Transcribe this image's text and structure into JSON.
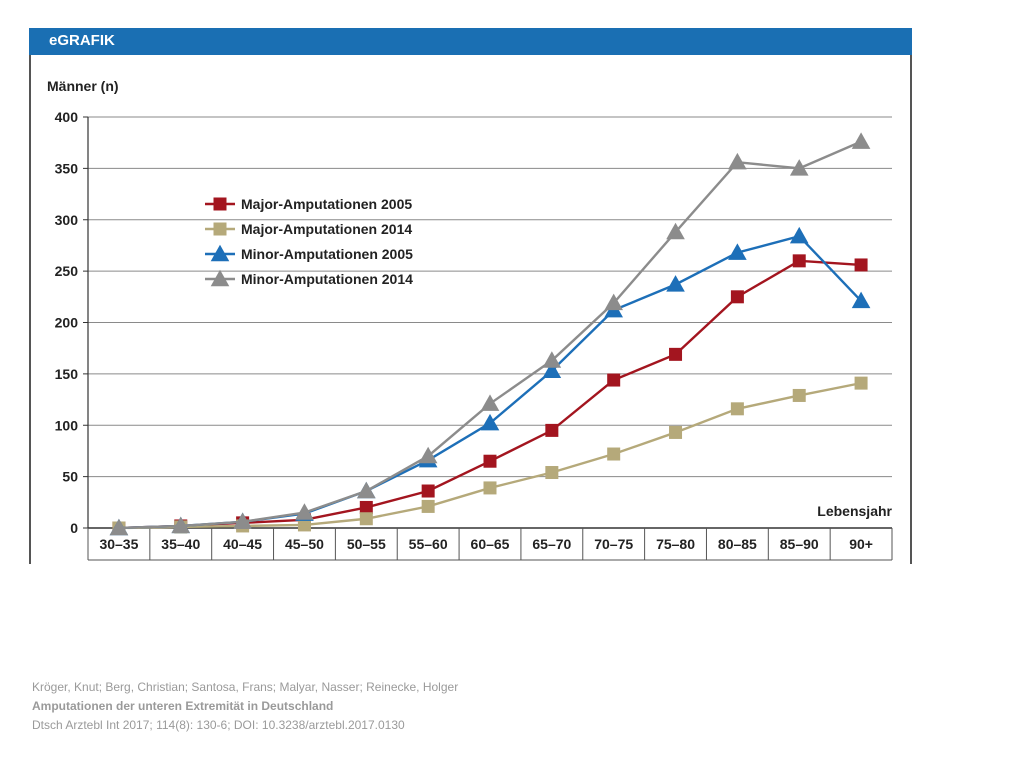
{
  "header": {
    "title": "eGRAFIK"
  },
  "citation": {
    "authors": "Kröger, Knut; Berg, Christian; Santosa, Frans; Malyar, Nasser; Reinecke, Holger",
    "title": "Amputationen der unteren Extremität in Deutschland",
    "source": "Dtsch Arztebl Int 2017; 114(8): 130-6; DOI: 10.3238/arztebl.2017.0130"
  },
  "colors": {
    "header": "#1a6fb3",
    "major2005": "#a3151f",
    "major2014": "#b5a97a",
    "minor2005": "#1d6fb8",
    "minor2014": "#8c8c8c",
    "grid": "#8a8a8a"
  },
  "chart_data": {
    "type": "line",
    "title": "",
    "ylabel": "Männer (n)",
    "xlabel": "Lebensjahr",
    "ylim": [
      0,
      400
    ],
    "yticks": [
      0,
      50,
      100,
      150,
      200,
      250,
      300,
      350,
      400
    ],
    "grid": true,
    "legend_position": "top-left",
    "categories": [
      "30–35",
      "35–40",
      "40–45",
      "45–50",
      "50–55",
      "55–60",
      "60–65",
      "65–70",
      "70–75",
      "75–80",
      "80–85",
      "85–90",
      "90+"
    ],
    "series": [
      {
        "name": "Major-Amputationen 2005",
        "marker": "square",
        "color": "#a3151f",
        "values": [
          0,
          2,
          5,
          8,
          20,
          36,
          65,
          95,
          144,
          169,
          225,
          260,
          256
        ]
      },
      {
        "name": "Major-Amputationen 2014",
        "marker": "square",
        "color": "#b5a97a",
        "values": [
          0,
          1,
          2,
          3,
          9,
          21,
          39,
          54,
          72,
          93,
          116,
          129,
          141
        ]
      },
      {
        "name": "Minor-Amputationen 2005",
        "marker": "triangle",
        "color": "#1d6fb8",
        "values": [
          0,
          2,
          6,
          14,
          36,
          66,
          102,
          153,
          212,
          237,
          268,
          284,
          221
        ]
      },
      {
        "name": "Minor-Amputationen 2014",
        "marker": "triangle",
        "color": "#8c8c8c",
        "values": [
          0,
          2,
          6,
          15,
          36,
          70,
          121,
          163,
          219,
          288,
          356,
          350,
          376
        ]
      }
    ]
  }
}
